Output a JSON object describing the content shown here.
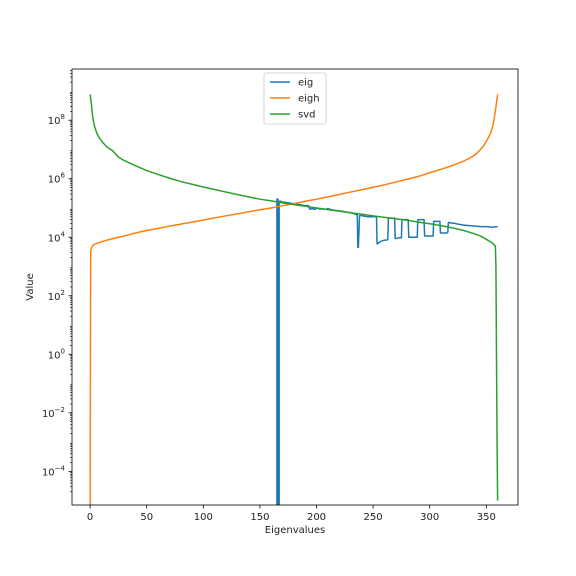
{
  "chart_data": {
    "type": "line",
    "title": "",
    "xlabel": "Eigenvalues",
    "ylabel": "Value",
    "xlim": [
      -16,
      378
    ],
    "ylim_log10": [
      -5.15,
      9.75
    ],
    "yscale": "log",
    "x_ticks": [
      0,
      50,
      100,
      150,
      200,
      250,
      300,
      350
    ],
    "y_tick_exponents": [
      -4,
      -2,
      0,
      2,
      4,
      6,
      8
    ],
    "legend_position": "top-center",
    "grid": false,
    "series": [
      {
        "name": "eig",
        "color": "#1f77b4",
        "x": [
          165,
          165,
          166,
          166,
          167,
          167,
          168,
          170,
          175,
          180,
          185,
          190,
          193,
          194,
          196,
          198,
          200,
          201,
          203,
          205,
          208,
          210,
          212,
          215,
          220,
          225,
          228,
          230,
          235,
          236,
          236.5,
          237,
          238,
          240,
          245,
          250,
          252,
          253,
          253.5,
          254,
          256,
          260,
          262,
          263,
          263.5,
          264,
          265,
          266,
          268,
          269,
          269.5,
          270,
          272,
          274,
          275,
          275.5,
          276,
          278,
          280,
          281,
          281.5,
          282,
          284,
          286,
          288,
          289,
          289.5,
          290,
          292,
          294,
          295,
          295.5,
          296,
          298,
          300,
          303,
          303.5,
          304,
          306,
          308,
          309,
          309.5,
          310,
          312,
          315,
          316,
          316.5,
          317,
          320,
          322,
          325,
          330,
          335,
          340,
          345,
          350,
          355,
          360
        ],
        "y": [
          2.4e-06,
          200000.0,
          200000.0,
          2.4e-06,
          2.4e-06,
          170000.0,
          170000.0,
          160000.0,
          150000.0,
          140000.0,
          130000.0,
          120000.0,
          120000.0,
          90000.0,
          95000.0,
          90000.0,
          95000.0,
          100000.0,
          90000.0,
          95000.0,
          90000.0,
          95000.0,
          90000.0,
          85000.0,
          80000.0,
          75000.0,
          70000.0,
          70000.0,
          60000.0,
          60000.0,
          4500.0,
          4500.0,
          55000.0,
          55000.0,
          50000.0,
          50000.0,
          50000.0,
          50000.0,
          6000.0,
          6000.0,
          7000.0,
          8000.0,
          8000.0,
          8500.0,
          45000.0,
          45000.0,
          45000.0,
          45000.0,
          45000.0,
          45000.0,
          9000.0,
          9000.0,
          9500.0,
          9500.0,
          9500.0,
          40000.0,
          40000.0,
          40000.0,
          40000.0,
          40000.0,
          10000.0,
          10000.0,
          10000.0,
          10000.0,
          10000.0,
          10000.0,
          40000.0,
          40000.0,
          40000.0,
          40000.0,
          40000.0,
          11000.0,
          11000.0,
          11000.0,
          11000.0,
          11000.0,
          35000.0,
          35000.0,
          35000.0,
          35000.0,
          35000.0,
          14000.0,
          14000.0,
          14000.0,
          14000.0,
          15000.0,
          32000.0,
          32000.0,
          30000.0,
          30000.0,
          28000.0,
          26000.0,
          25000.0,
          24000.0,
          23000.0,
          23000.0,
          22000.0,
          23000.0
        ]
      },
      {
        "name": "eigh",
        "color": "#ff7f0e",
        "x": [
          0,
          0.5,
          1,
          2,
          3,
          5,
          10,
          15,
          20,
          30,
          40,
          50,
          60,
          70,
          80,
          90,
          100,
          110,
          120,
          130,
          140,
          150,
          160,
          170,
          180,
          190,
          200,
          210,
          220,
          230,
          240,
          250,
          260,
          270,
          280,
          290,
          300,
          310,
          320,
          330,
          335,
          340,
          345,
          348,
          351,
          354,
          356,
          357,
          358,
          359,
          360
        ],
        "y": [
          2.4e-06,
          3500.0,
          4000.0,
          5000.0,
          5500.0,
          6000.0,
          7000.0,
          8000.0,
          9000.0,
          11000.0,
          14000.0,
          17000.0,
          20000.0,
          24000.0,
          28000.0,
          33000.0,
          39000.0,
          46000.0,
          54000.0,
          63000.0,
          74000.0,
          87000.0,
          100000.0,
          120000.0,
          140000.0,
          170000.0,
          200000.0,
          240000.0,
          290000.0,
          350000.0,
          420000.0,
          510000.0,
          620000.0,
          770000.0,
          960000.0,
          1200000.0,
          1600000.0,
          2100000.0,
          2800000.0,
          4000000.0,
          5000000.0,
          6500000.0,
          10000000.0,
          14000000.0,
          22000000.0,
          38000000.0,
          70000000.0,
          120000000.0,
          200000000.0,
          400000000.0,
          760000000.0
        ]
      },
      {
        "name": "svd",
        "color": "#2ca02c",
        "x": [
          0,
          1,
          2,
          3,
          4,
          6,
          9,
          12,
          15,
          20,
          25,
          30,
          40,
          50,
          60,
          70,
          80,
          90,
          100,
          110,
          120,
          130,
          140,
          150,
          160,
          170,
          180,
          190,
          200,
          210,
          220,
          230,
          240,
          250,
          260,
          270,
          280,
          290,
          300,
          310,
          320,
          330,
          340,
          345,
          350,
          355,
          357,
          358,
          358.5,
          359,
          359.5,
          360
        ],
        "y": [
          760000000.0,
          400000000.0,
          160000000.0,
          90000000.0,
          60000000.0,
          35000000.0,
          22000000.0,
          16000000.0,
          12000000.0,
          9000000.0,
          5500000.0,
          4200000.0,
          2800000.0,
          1900000.0,
          1400000.0,
          1050000.0,
          800000.0,
          650000.0,
          520000.0,
          430000.0,
          350000.0,
          290000.0,
          240000.0,
          200000.0,
          175000.0,
          150000.0,
          130000.0,
          115000.0,
          100000.0,
          88000.0,
          78000.0,
          69000.0,
          61000.0,
          54000.0,
          48000.0,
          43000.0,
          38000.0,
          33000.0,
          29000.0,
          25000.0,
          21000.0,
          17000.0,
          13000.0,
          11000.0,
          8500.0,
          6500.0,
          5500.0,
          5000.0,
          1000.0,
          1.0,
          0.001,
          1e-05
        ]
      }
    ]
  }
}
